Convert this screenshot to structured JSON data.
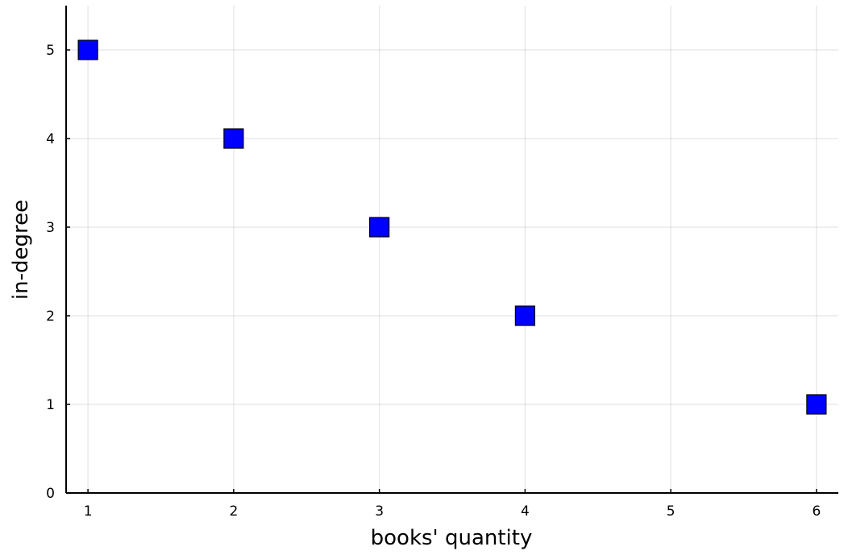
{
  "chart_data": {
    "type": "scatter",
    "xlabel": "books' quantity",
    "ylabel": "in-degree",
    "xlim": [
      0.85,
      6.15
    ],
    "ylim": [
      0,
      5.5
    ],
    "x_ticks": [
      1,
      2,
      3,
      4,
      5,
      6
    ],
    "y_ticks": [
      0,
      1,
      2,
      3,
      4,
      5
    ],
    "grid": true,
    "legend": "none",
    "series": [
      {
        "marker": "square",
        "color": "#0000ff",
        "points": [
          {
            "x": 1,
            "y": 5
          },
          {
            "x": 2,
            "y": 4
          },
          {
            "x": 3,
            "y": 3
          },
          {
            "x": 4,
            "y": 2
          },
          {
            "x": 6,
            "y": 1
          }
        ]
      }
    ]
  }
}
